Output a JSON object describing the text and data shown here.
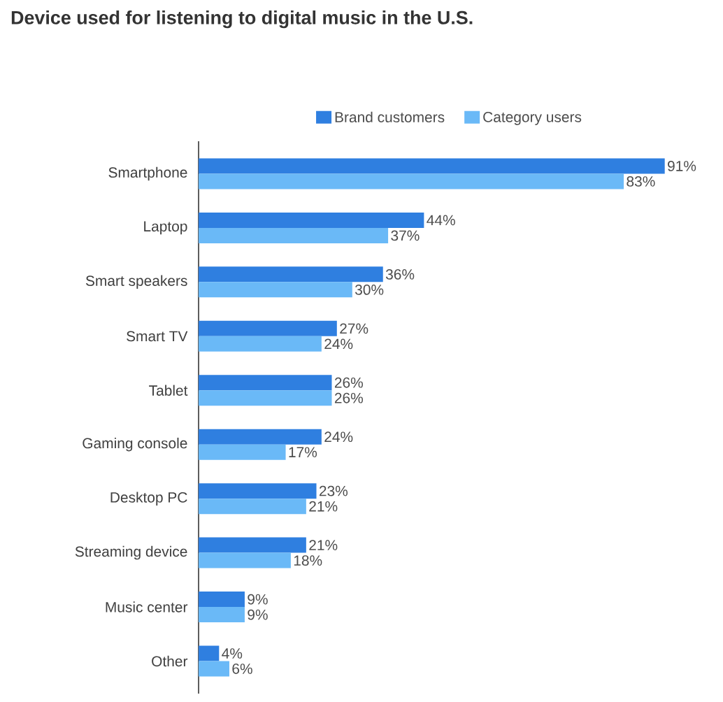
{
  "chart_data": {
    "type": "bar",
    "orientation": "horizontal",
    "title": "Device used for listening to digital music in the U.S.",
    "legend": "top",
    "categories": [
      "Smartphone",
      "Laptop",
      "Smart speakers",
      "Smart TV",
      "Tablet",
      "Gaming console",
      "Desktop PC",
      "Streaming device",
      "Music center",
      "Other"
    ],
    "series": [
      {
        "name": "Brand customers",
        "color": "#2f7fe0",
        "values": [
          91,
          44,
          36,
          27,
          26,
          24,
          23,
          21,
          9,
          4
        ],
        "value_labels": [
          "91%",
          "44%",
          "36%",
          "27%",
          "26%",
          "24%",
          "23%",
          "21%",
          "9%",
          "4%"
        ]
      },
      {
        "name": "Category users",
        "color": "#6ab9f7",
        "values": [
          83,
          37,
          30,
          24,
          26,
          17,
          21,
          18,
          9,
          6
        ],
        "value_labels": [
          "83%",
          "37%",
          "30%",
          "24%",
          "26%",
          "17%",
          "21%",
          "18%",
          "9%",
          "6%"
        ]
      }
    ]
  }
}
